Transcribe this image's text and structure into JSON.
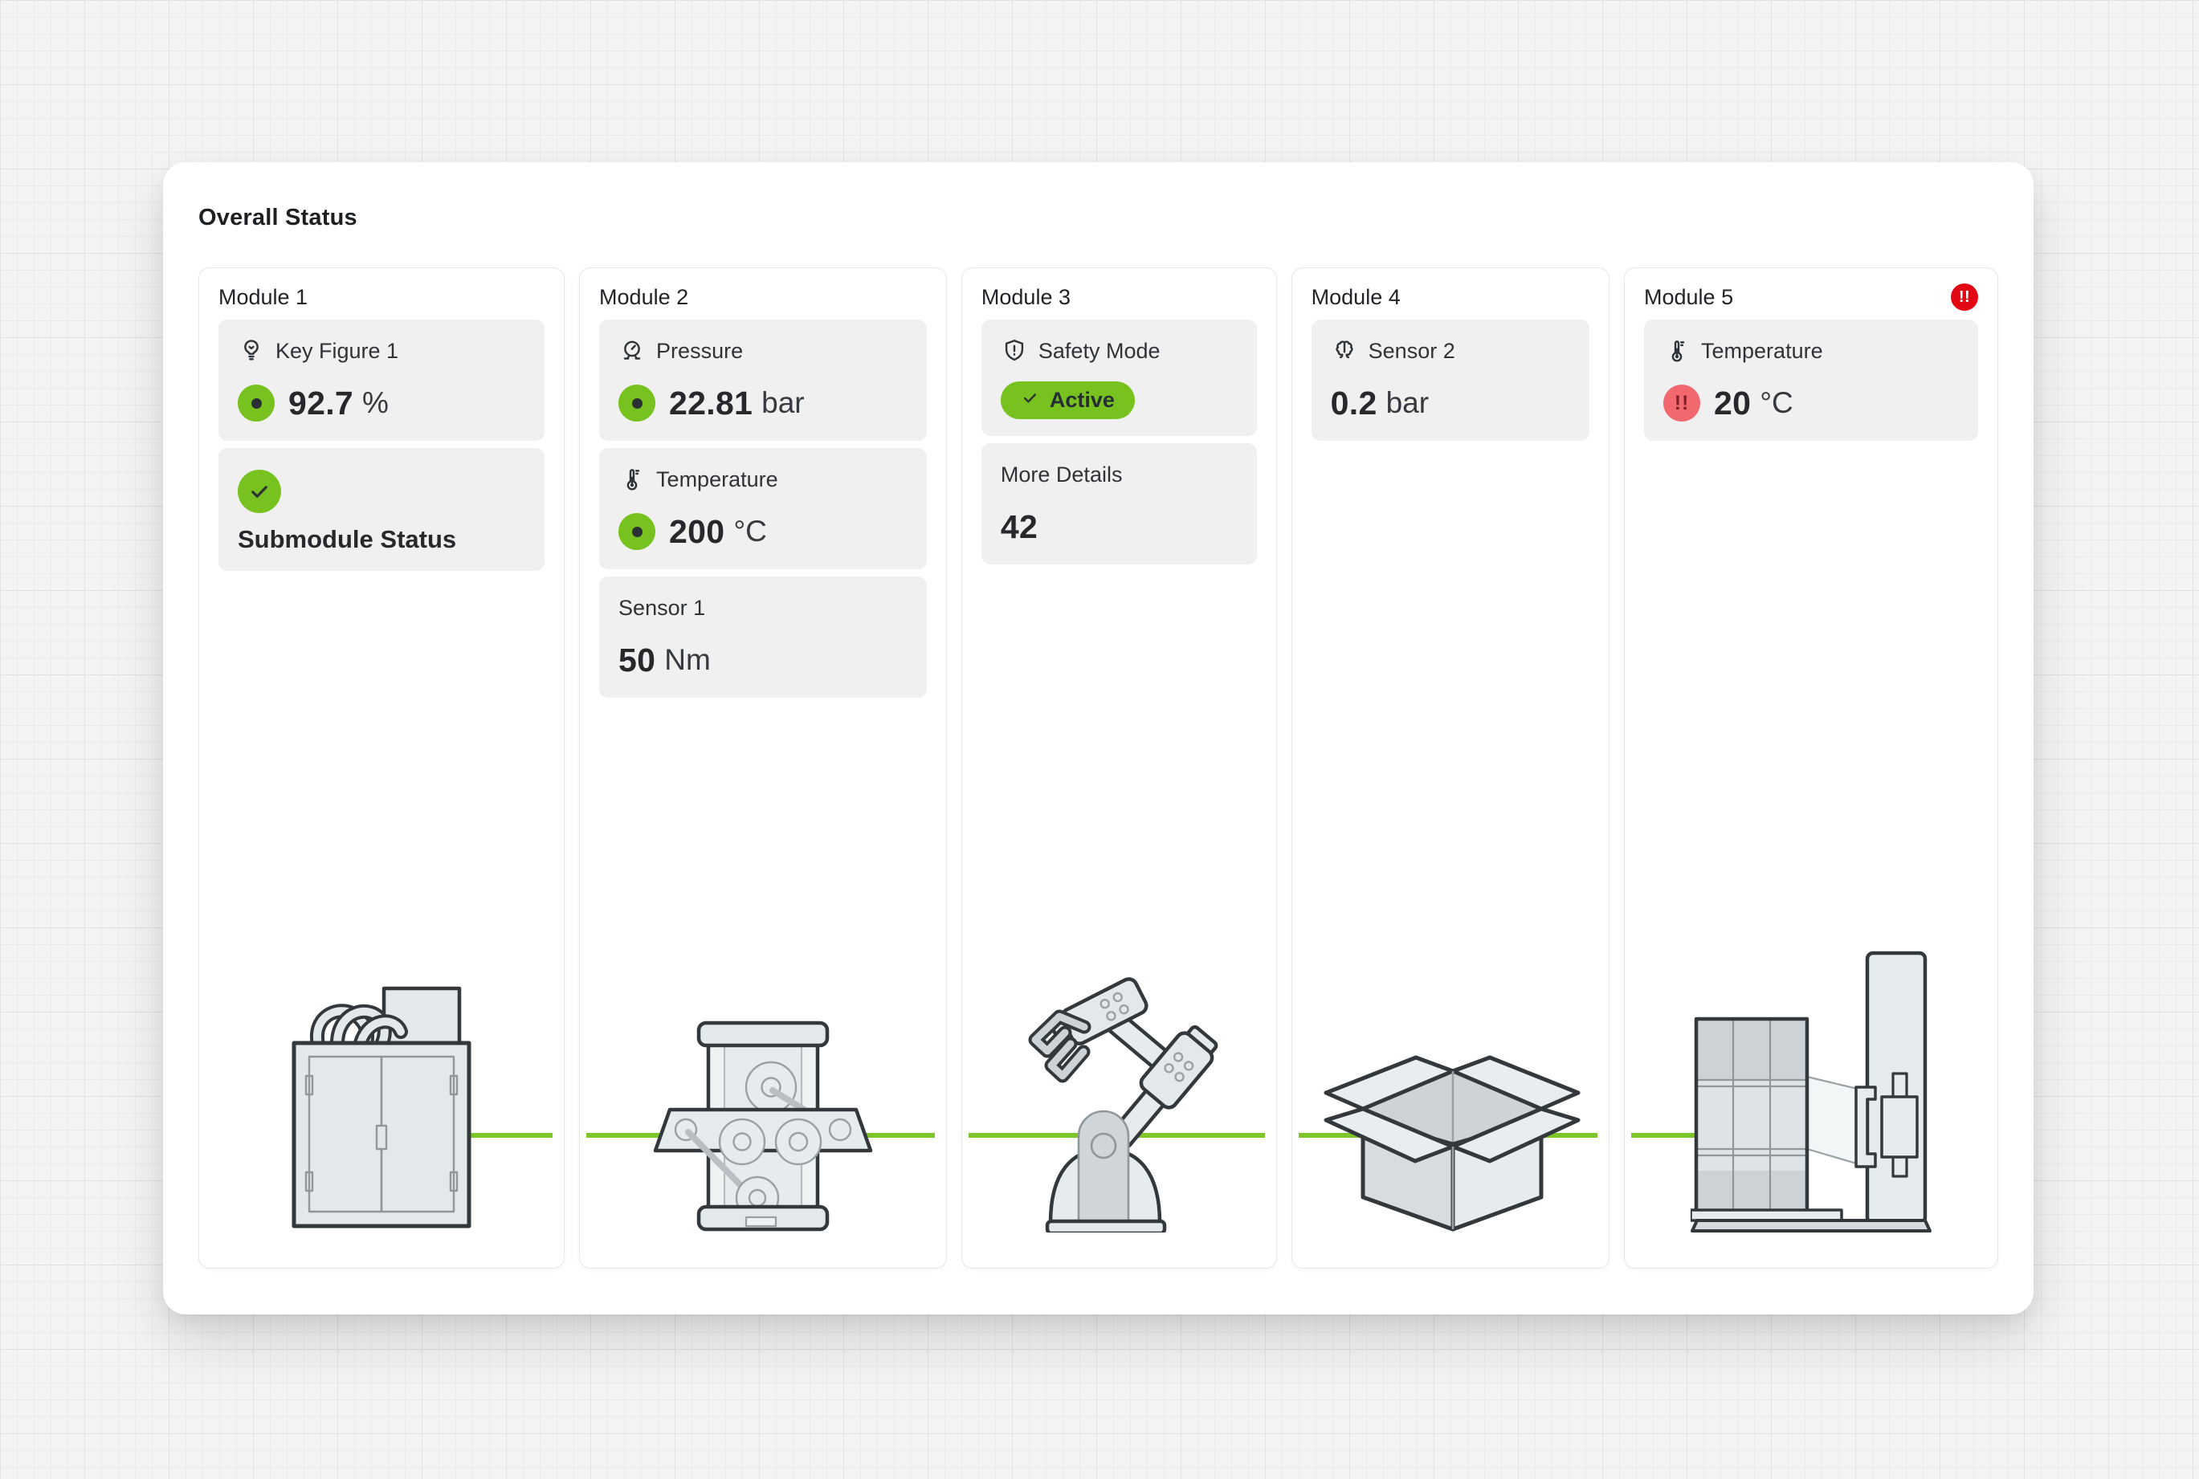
{
  "page": {
    "title": "Overall Status"
  },
  "colors": {
    "accent_green": "#77c21e",
    "line_green": "#7cc62a",
    "alert_red": "#e30613",
    "alert_pink": "#f1686f",
    "alert_glyph": "#7e1f28"
  },
  "modules": [
    {
      "id": "module-1",
      "title": "Module 1",
      "illustration": "cabinet-machine",
      "tiles": [
        {
          "kind": "metric",
          "icon": "bulb-icon",
          "label": "Key Figure 1",
          "indicator": "ok",
          "value": "92.7",
          "unit": "%"
        },
        {
          "kind": "status",
          "text": "Submodule Status"
        }
      ]
    },
    {
      "id": "module-2",
      "title": "Module 2",
      "illustration": "roller-machine",
      "tiles": [
        {
          "kind": "metric",
          "icon": "gauge-icon",
          "label": "Pressure",
          "indicator": "ok",
          "value": "22.81",
          "unit": "bar"
        },
        {
          "kind": "metric",
          "icon": "thermometer-icon",
          "label": "Temperature",
          "indicator": "ok",
          "value": "200",
          "unit": "°C"
        },
        {
          "kind": "metric",
          "icon": null,
          "label": "Sensor 1",
          "indicator": null,
          "value": "50",
          "unit": "Nm"
        }
      ]
    },
    {
      "id": "module-3",
      "title": "Module 3",
      "illustration": "robot-arm",
      "tiles": [
        {
          "kind": "badge",
          "icon": "shield-icon",
          "label": "Safety Mode",
          "badge": {
            "icon": "check-icon",
            "text": "Active"
          }
        },
        {
          "kind": "metric",
          "icon": null,
          "label": "More Details",
          "indicator": null,
          "value": "42",
          "unit": "",
          "clickable": true
        }
      ]
    },
    {
      "id": "module-4",
      "title": "Module 4",
      "illustration": "open-box",
      "tiles": [
        {
          "kind": "metric",
          "icon": "brain-icon",
          "label": "Sensor 2",
          "indicator": null,
          "value": "0.2",
          "unit": "bar"
        }
      ]
    },
    {
      "id": "module-5",
      "title": "Module 5",
      "badge_glyph": "!!",
      "illustration": "stacker-machine",
      "tiles": [
        {
          "kind": "metric",
          "icon": "thermometer-icon",
          "label": "Temperature",
          "indicator": "alert",
          "glyph": "!!",
          "value": "20",
          "unit": "°C"
        }
      ]
    }
  ]
}
